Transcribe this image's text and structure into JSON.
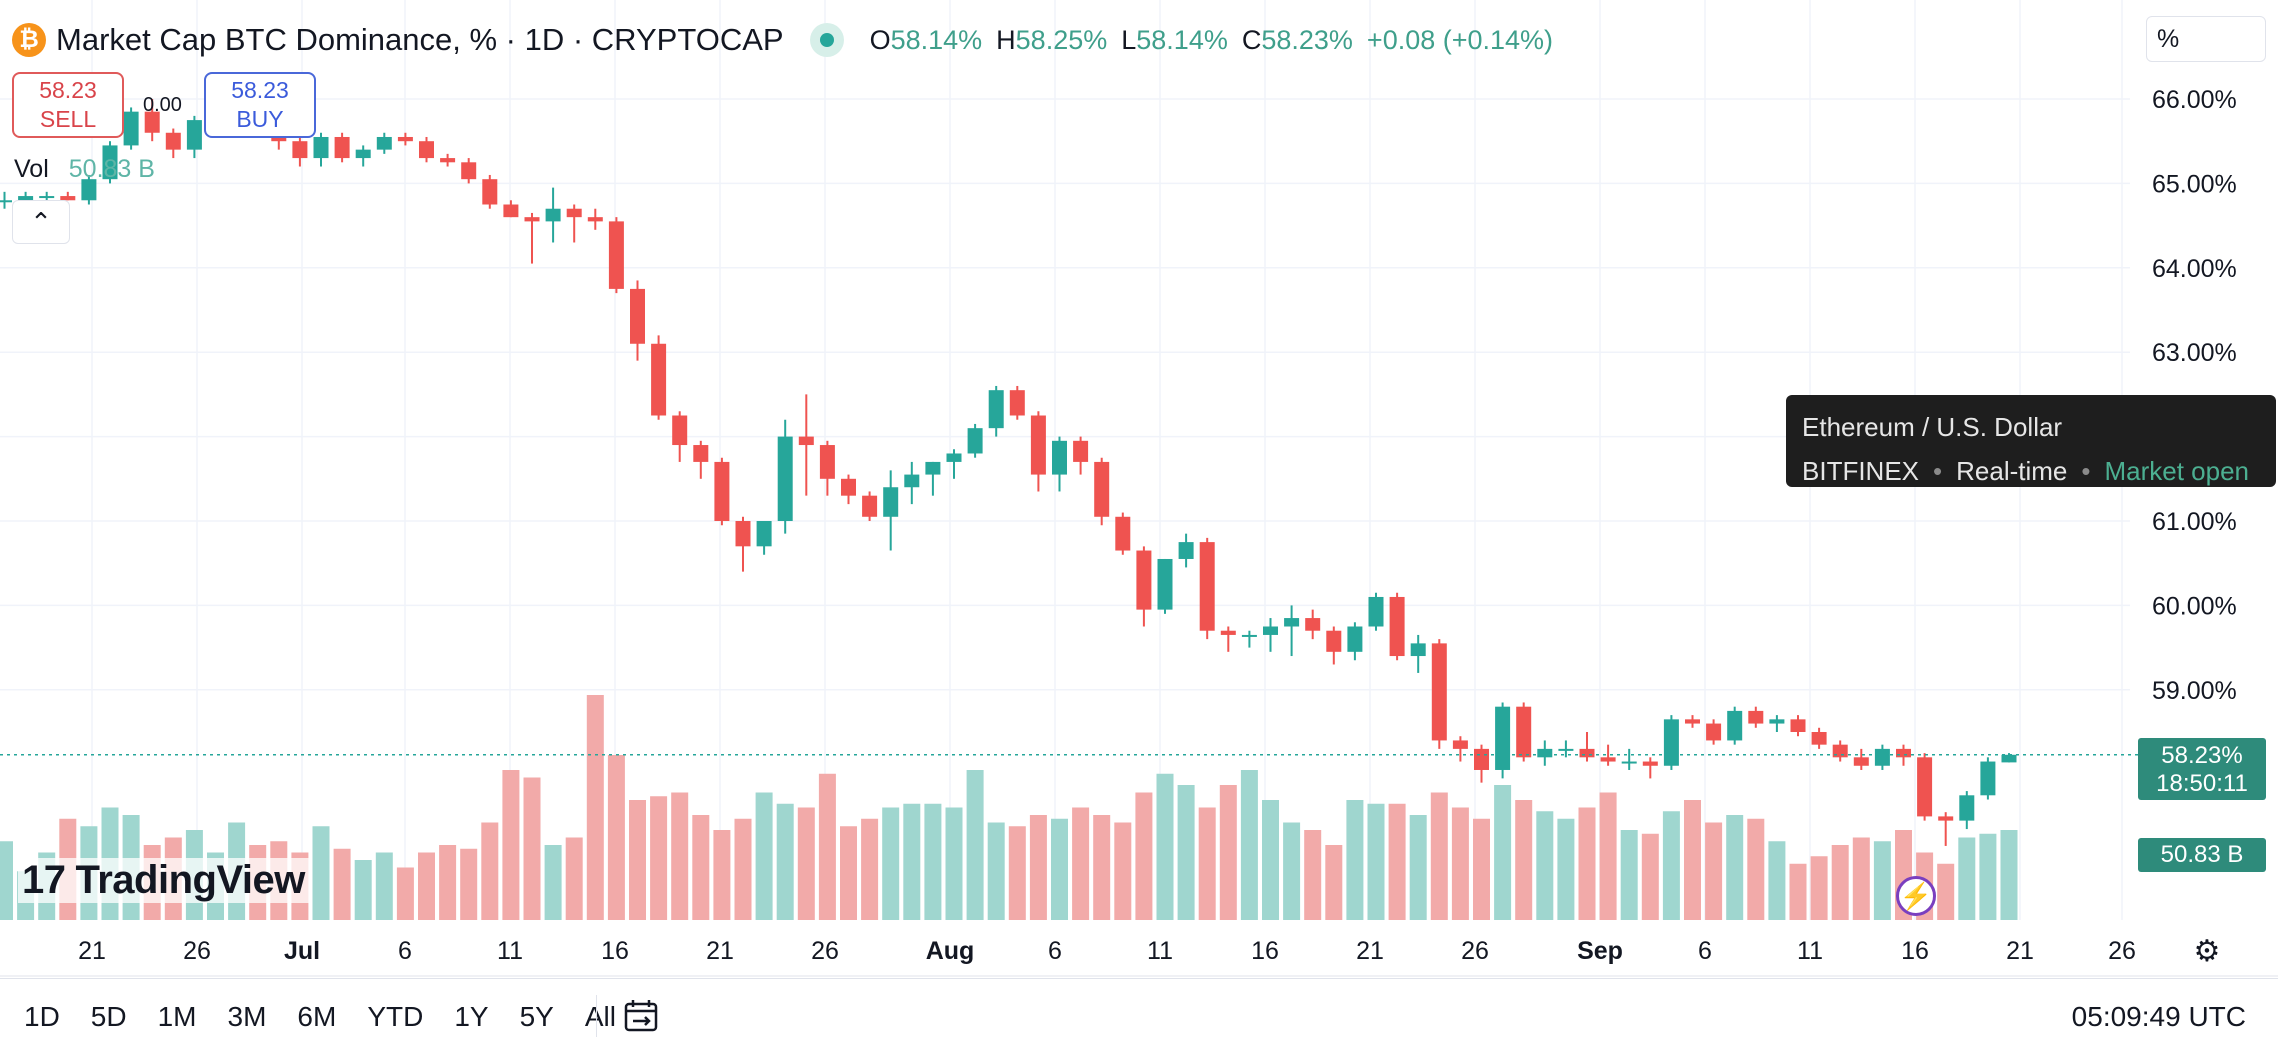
{
  "header": {
    "btc_glyph": "₿",
    "title": "Market Cap BTC Dominance, % · 1D · CRYPTOCAP",
    "ohlc": [
      {
        "k": "O",
        "v": "58.14%"
      },
      {
        "k": "H",
        "v": "58.25%"
      },
      {
        "k": "L",
        "v": "58.14%"
      },
      {
        "k": "C",
        "v": "58.23%"
      },
      {
        "k": "",
        "v": "+0.08 (+0.14%)"
      }
    ],
    "scale_mode": "%"
  },
  "trade": {
    "sell_price": "58.23",
    "sell_label": "SELL",
    "buy_price": "58.23",
    "buy_label": "BUY",
    "spread": "0.00"
  },
  "volume": {
    "label": "Vol",
    "value": "50.83 B",
    "tag": "50.83 B"
  },
  "collapse_glyph": "⌃",
  "tooltip": {
    "title": "Ethereum / U.S. Dollar",
    "exchange": "BITFINEX",
    "feed": "Real-time",
    "status": "Market open"
  },
  "price_tag": {
    "price": "58.23%",
    "countdown": "18:50:11"
  },
  "logo": {
    "mark": "17",
    "text": "TradingView"
  },
  "bottom": {
    "ranges": [
      "1D",
      "5D",
      "1M",
      "3M",
      "6M",
      "YTD",
      "1Y",
      "5Y",
      "All"
    ],
    "time": "05:09:49 UTC"
  },
  "icons": {
    "bolt": "lightning-icon",
    "gear": "gear-icon",
    "calendar": "calendar-range-icon"
  },
  "colors": {
    "up": "#26a69a",
    "down": "#ef5350",
    "vol_up": "#9fd6cf",
    "vol_down": "#f2aaa9",
    "accent": "#2e8b7b"
  },
  "chart_data": {
    "type": "candlestick",
    "title": "Market Cap BTC Dominance, % · 1D · CRYPTOCAP",
    "y_unit": "%",
    "ylim": [
      57.0,
      66.5
    ],
    "y_ticks": [
      "66.00%",
      "65.00%",
      "64.00%",
      "63.00%",
      "61.00%",
      "60.00%",
      "59.00%"
    ],
    "x_ticks": [
      "21",
      "26",
      "Jul",
      "6",
      "11",
      "16",
      "21",
      "26",
      "Aug",
      "6",
      "11",
      "16",
      "21",
      "26",
      "Sep",
      "6",
      "11",
      "16",
      "21",
      "26"
    ],
    "grid": true,
    "last_price": 58.23,
    "candles": [
      [
        64.8,
        64.9,
        64.7,
        64.8,
        21
      ],
      [
        64.8,
        64.9,
        64.7,
        64.85,
        13
      ],
      [
        64.85,
        64.9,
        64.75,
        64.85,
        18
      ],
      [
        64.85,
        64.9,
        64.8,
        64.8,
        27
      ],
      [
        64.8,
        65.1,
        64.75,
        65.05,
        25
      ],
      [
        65.05,
        65.5,
        65.0,
        65.45,
        30
      ],
      [
        65.45,
        65.9,
        65.4,
        65.85,
        28
      ],
      [
        65.85,
        66.0,
        65.5,
        65.6,
        20
      ],
      [
        65.6,
        65.65,
        65.3,
        65.4,
        22
      ],
      [
        65.4,
        65.8,
        65.3,
        65.75,
        24
      ],
      [
        65.75,
        66.0,
        65.7,
        65.95,
        18
      ],
      [
        65.95,
        66.2,
        65.8,
        66.1,
        26
      ],
      [
        66.1,
        66.15,
        65.7,
        65.8,
        20
      ],
      [
        65.8,
        65.85,
        65.4,
        65.5,
        21
      ],
      [
        65.5,
        65.55,
        65.2,
        65.3,
        18
      ],
      [
        65.3,
        65.6,
        65.2,
        65.55,
        25
      ],
      [
        65.55,
        65.6,
        65.25,
        65.3,
        19
      ],
      [
        65.3,
        65.45,
        65.2,
        65.4,
        16
      ],
      [
        65.4,
        65.6,
        65.35,
        65.55,
        18
      ],
      [
        65.55,
        65.6,
        65.45,
        65.5,
        14
      ],
      [
        65.5,
        65.55,
        65.25,
        65.3,
        18
      ],
      [
        65.3,
        65.35,
        65.2,
        65.25,
        20
      ],
      [
        65.25,
        65.3,
        65.0,
        65.05,
        19
      ],
      [
        65.05,
        65.1,
        64.7,
        64.75,
        26
      ],
      [
        64.75,
        64.8,
        64.6,
        64.6,
        40
      ],
      [
        64.6,
        64.65,
        64.05,
        64.55,
        38
      ],
      [
        64.55,
        64.95,
        64.3,
        64.7,
        20
      ],
      [
        64.7,
        64.75,
        64.3,
        64.6,
        22
      ],
      [
        64.6,
        64.7,
        64.45,
        64.55,
        60
      ],
      [
        64.55,
        64.6,
        63.7,
        63.75,
        44
      ],
      [
        63.75,
        63.85,
        62.9,
        63.1,
        32
      ],
      [
        63.1,
        63.2,
        62.2,
        62.25,
        33
      ],
      [
        62.25,
        62.3,
        61.7,
        61.9,
        34
      ],
      [
        61.9,
        61.95,
        61.5,
        61.7,
        28
      ],
      [
        61.7,
        61.75,
        60.95,
        61.0,
        24
      ],
      [
        61.0,
        61.05,
        60.4,
        60.7,
        27
      ],
      [
        60.7,
        61.0,
        60.6,
        61.0,
        34
      ],
      [
        61.0,
        62.2,
        60.85,
        62.0,
        31
      ],
      [
        62.0,
        62.5,
        61.3,
        61.9,
        30
      ],
      [
        61.9,
        61.95,
        61.3,
        61.5,
        39
      ],
      [
        61.5,
        61.55,
        61.2,
        61.3,
        25
      ],
      [
        61.3,
        61.35,
        61.0,
        61.05,
        27
      ],
      [
        61.05,
        61.6,
        60.65,
        61.4,
        30
      ],
      [
        61.4,
        61.7,
        61.2,
        61.55,
        31
      ],
      [
        61.55,
        61.7,
        61.3,
        61.7,
        31
      ],
      [
        61.7,
        61.85,
        61.5,
        61.8,
        30
      ],
      [
        61.8,
        62.15,
        61.75,
        62.1,
        40
      ],
      [
        62.1,
        62.6,
        62.0,
        62.55,
        26
      ],
      [
        62.55,
        62.6,
        62.2,
        62.25,
        25
      ],
      [
        62.25,
        62.3,
        61.35,
        61.55,
        28
      ],
      [
        61.55,
        62.0,
        61.35,
        61.95,
        27
      ],
      [
        61.95,
        62.0,
        61.55,
        61.7,
        30
      ],
      [
        61.7,
        61.75,
        60.95,
        61.05,
        28
      ],
      [
        61.05,
        61.1,
        60.6,
        60.65,
        26
      ],
      [
        60.65,
        60.7,
        59.75,
        59.95,
        34
      ],
      [
        59.95,
        60.55,
        59.9,
        60.55,
        39
      ],
      [
        60.55,
        60.85,
        60.45,
        60.75,
        36
      ],
      [
        60.75,
        60.8,
        59.6,
        59.7,
        30
      ],
      [
        59.7,
        59.75,
        59.45,
        59.65,
        36
      ],
      [
        59.65,
        59.7,
        59.5,
        59.65,
        40
      ],
      [
        59.65,
        59.85,
        59.45,
        59.75,
        32
      ],
      [
        59.75,
        60.0,
        59.4,
        59.85,
        26
      ],
      [
        59.85,
        59.95,
        59.6,
        59.7,
        24
      ],
      [
        59.7,
        59.75,
        59.3,
        59.45,
        20
      ],
      [
        59.45,
        59.8,
        59.35,
        59.75,
        32
      ],
      [
        59.75,
        60.15,
        59.7,
        60.1,
        31
      ],
      [
        60.1,
        60.15,
        59.35,
        59.4,
        31
      ],
      [
        59.4,
        59.65,
        59.2,
        59.55,
        28
      ],
      [
        59.55,
        59.6,
        58.3,
        58.4,
        34
      ],
      [
        58.4,
        58.45,
        58.15,
        58.3,
        30
      ],
      [
        58.3,
        58.35,
        57.9,
        58.05,
        27
      ],
      [
        58.05,
        58.85,
        57.95,
        58.8,
        36
      ],
      [
        58.8,
        58.85,
        58.15,
        58.2,
        32
      ],
      [
        58.2,
        58.4,
        58.1,
        58.3,
        29
      ],
      [
        58.3,
        58.4,
        58.2,
        58.3,
        27
      ],
      [
        58.3,
        58.5,
        58.15,
        58.2,
        30
      ],
      [
        58.2,
        58.35,
        58.1,
        58.15,
        34
      ],
      [
        58.15,
        58.3,
        58.05,
        58.15,
        24
      ],
      [
        58.15,
        58.2,
        57.95,
        58.1,
        23
      ],
      [
        58.1,
        58.7,
        58.05,
        58.65,
        29
      ],
      [
        58.65,
        58.7,
        58.55,
        58.6,
        32
      ],
      [
        58.6,
        58.65,
        58.35,
        58.4,
        26
      ],
      [
        58.4,
        58.8,
        58.35,
        58.75,
        28
      ],
      [
        58.75,
        58.8,
        58.55,
        58.6,
        27
      ],
      [
        58.6,
        58.7,
        58.5,
        58.65,
        21
      ],
      [
        58.65,
        58.7,
        58.45,
        58.5,
        15
      ],
      [
        58.5,
        58.55,
        58.3,
        58.35,
        17
      ],
      [
        58.35,
        58.4,
        58.15,
        58.2,
        20
      ],
      [
        58.2,
        58.3,
        58.05,
        58.1,
        22
      ],
      [
        58.1,
        58.35,
        58.05,
        58.3,
        21
      ],
      [
        58.3,
        58.35,
        58.1,
        58.2,
        24
      ],
      [
        58.2,
        58.25,
        57.45,
        57.5,
        18
      ],
      [
        57.5,
        57.55,
        57.15,
        57.45,
        15
      ],
      [
        57.45,
        57.8,
        57.35,
        57.75,
        22
      ],
      [
        57.75,
        58.2,
        57.7,
        58.15,
        23
      ],
      [
        58.14,
        58.25,
        58.14,
        58.23,
        24
      ]
    ]
  }
}
